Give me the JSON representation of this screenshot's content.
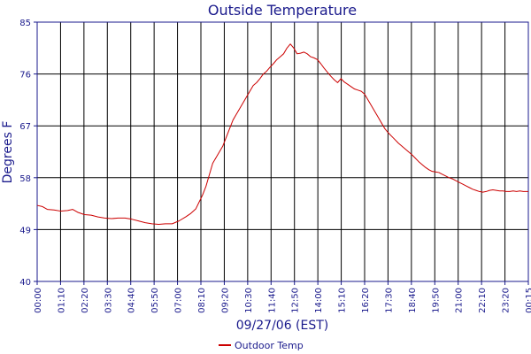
{
  "chart_data": {
    "type": "line",
    "title": "Outside Temperature",
    "xlabel": "09/27/06 (EST)",
    "ylabel": "Degrees F",
    "ylim": [
      40,
      85
    ],
    "yticks": [
      40,
      49,
      58,
      67,
      76,
      85
    ],
    "grid": true,
    "legend_position": "bottom",
    "x_tick_labels": [
      "00:00",
      "01:10",
      "02:20",
      "03:30",
      "04:40",
      "05:50",
      "07:00",
      "08:10",
      "09:20",
      "10:30",
      "11:40",
      "12:50",
      "14:00",
      "15:10",
      "16:20",
      "17:30",
      "18:40",
      "19:50",
      "21:00",
      "22:10",
      "23:20",
      "00:15"
    ],
    "x_minutes_range": [
      0,
      1455
    ],
    "series": [
      {
        "name": "Outdoor Temp",
        "color": "#cc0000",
        "x_minutes": [
          0,
          15,
          30,
          50,
          70,
          90,
          105,
          120,
          140,
          160,
          180,
          200,
          220,
          240,
          260,
          280,
          300,
          320,
          340,
          360,
          380,
          400,
          420,
          440,
          455,
          470,
          480,
          490,
          500,
          510,
          520,
          530,
          540,
          550,
          560,
          570,
          580,
          590,
          600,
          610,
          620,
          630,
          640,
          650,
          660,
          670,
          680,
          690,
          700,
          710,
          720,
          730,
          740,
          750,
          760,
          770,
          780,
          790,
          800,
          810,
          820,
          830,
          840,
          850,
          860,
          870,
          880,
          890,
          900,
          910,
          920,
          930,
          940,
          950,
          960,
          970,
          980,
          990,
          1000,
          1010,
          1020,
          1030,
          1040,
          1050,
          1060,
          1070,
          1080,
          1090,
          1100,
          1110,
          1120,
          1130,
          1140,
          1150,
          1160,
          1170,
          1180,
          1190,
          1200,
          1210,
          1220,
          1230,
          1240,
          1250,
          1260,
          1270,
          1280,
          1290,
          1300,
          1310,
          1320,
          1330,
          1340,
          1350,
          1360,
          1370,
          1380,
          1390,
          1400,
          1410,
          1420,
          1430,
          1440,
          1455
        ],
        "values": [
          53.2,
          53.0,
          52.5,
          52.4,
          52.2,
          52.3,
          52.5,
          52.0,
          51.6,
          51.5,
          51.2,
          51.0,
          50.9,
          51.0,
          51.0,
          50.8,
          50.5,
          50.2,
          50.0,
          49.9,
          50.0,
          50.0,
          50.5,
          51.2,
          51.8,
          52.6,
          53.8,
          55.0,
          56.5,
          58.5,
          60.5,
          61.5,
          62.5,
          63.5,
          65.0,
          66.5,
          68.0,
          69.0,
          70.0,
          71.0,
          72.0,
          73.0,
          74.0,
          74.5,
          75.2,
          76.0,
          76.5,
          77.2,
          77.8,
          78.5,
          79.0,
          79.5,
          80.5,
          81.2,
          80.5,
          79.5,
          79.6,
          79.8,
          79.5,
          79.0,
          78.8,
          78.5,
          77.8,
          77.0,
          76.3,
          75.6,
          75.0,
          74.5,
          75.2,
          74.6,
          74.2,
          73.8,
          73.4,
          73.2,
          73.0,
          72.5,
          71.5,
          70.5,
          69.5,
          68.5,
          67.5,
          66.5,
          65.8,
          65.2,
          64.6,
          64.0,
          63.5,
          63.0,
          62.5,
          62.0,
          61.4,
          60.8,
          60.3,
          59.8,
          59.4,
          59.1,
          59.0,
          58.9,
          58.6,
          58.3,
          58.0,
          57.8,
          57.5,
          57.2,
          56.9,
          56.6,
          56.3,
          56.0,
          55.8,
          55.6,
          55.5,
          55.6,
          55.8,
          55.9,
          55.8,
          55.7,
          55.7,
          55.6,
          55.6,
          55.7,
          55.6,
          55.7,
          55.6,
          55.6
        ]
      }
    ]
  }
}
